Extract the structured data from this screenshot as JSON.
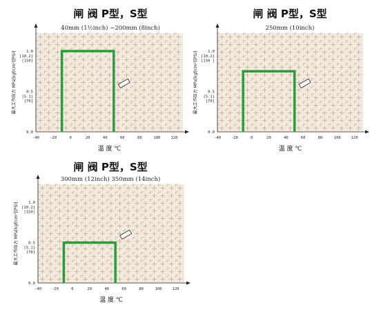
{
  "chart_data": [
    {
      "type": "line",
      "title": "闸 阀  P型，S型",
      "subtitle": "40mm (1½inch) −200mm (8inch)",
      "xlabel": "温 度 ℃",
      "ylabel": "最大工作压力 MPa[kgf/cm²][PSI]",
      "xlim": [
        -40,
        130
      ],
      "ylim": [
        0,
        1.0
      ],
      "x_ticks": [
        "-40",
        "-20",
        "0",
        "20",
        "40",
        "60",
        "80",
        "100",
        "120"
      ],
      "y_ticks": [
        {
          "value": 0,
          "label": "0.0",
          "sub": ""
        },
        {
          "value": 0.5,
          "label": "0.5",
          "sub": "[5.1]\n[70]"
        },
        {
          "value": 1.0,
          "label": "1.0",
          "sub": "[10.2]\n[150]"
        }
      ],
      "series": [
        {
          "color": "#2a9d3a",
          "x": [
            -10,
            -10,
            50,
            50
          ],
          "y": [
            0,
            1.0,
            1.0,
            0
          ]
        }
      ],
      "grid": true,
      "color_bg": "#f3e9dc",
      "color_grid": "#9b8e80"
    },
    {
      "type": "line",
      "title": "闸 阀  P型，S型",
      "subtitle": "250mm (10inch)",
      "xlabel": "温 度 ℃",
      "ylabel": "最大工作压力 MPa[kgf/cm²][PSI]",
      "xlim": [
        -40,
        130
      ],
      "ylim": [
        0,
        1.0
      ],
      "x_ticks": [
        "-40",
        "-20",
        "0",
        "20",
        "40",
        "60",
        "80",
        "100",
        "120"
      ],
      "y_ticks": [
        {
          "value": 0,
          "label": "0.0",
          "sub": ""
        },
        {
          "value": 0.5,
          "label": "0.5",
          "sub": "[5.1]\n[70]"
        },
        {
          "value": 1.0,
          "label": "1.0",
          "sub": "[10.2]\n[150 ]"
        }
      ],
      "series": [
        {
          "color": "#2a9d3a",
          "x": [
            -10,
            -10,
            50,
            50
          ],
          "y": [
            0,
            0.75,
            0.75,
            0
          ]
        }
      ],
      "grid": true,
      "color_bg": "#f3e9dc",
      "color_grid": "#9b8e80"
    },
    {
      "type": "line",
      "title": "闸 阀  P型，S型",
      "subtitle": "300mm (12inch)    350mm (14inch)",
      "xlabel": "温 度 ℃",
      "ylabel": "最大工作压力 MPa[kgf/cm²][PSI]",
      "xlim": [
        -40,
        130
      ],
      "ylim": [
        0,
        1.0
      ],
      "x_ticks": [
        "-40",
        "-20",
        "0",
        "20",
        "40",
        "60",
        "80",
        "100",
        "120"
      ],
      "y_ticks": [
        {
          "value": 0,
          "label": "0.0",
          "sub": ""
        },
        {
          "value": 0.5,
          "label": "0.5",
          "sub": "[5.1]\n[70]"
        },
        {
          "value": 1.0,
          "label": "1.0",
          "sub": "[10.2]\n[150]"
        }
      ],
      "series": [
        {
          "color": "#2a9d3a",
          "x": [
            -10,
            -10,
            50,
            50
          ],
          "y": [
            0,
            0.5,
            0.5,
            0
          ]
        }
      ],
      "grid": true,
      "color_bg": "#f3e9dc",
      "color_grid": "#9b8e80"
    }
  ]
}
